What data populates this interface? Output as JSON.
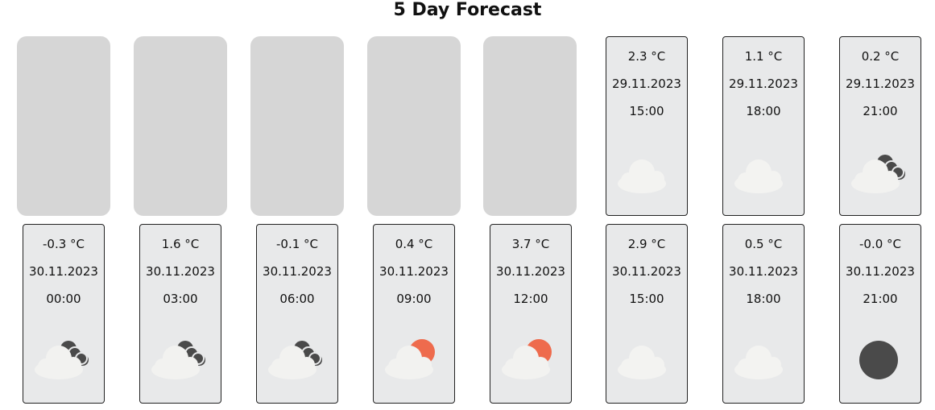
{
  "title": "5 Day Forecast",
  "placeholder_count": 5,
  "row1": [
    {
      "temp": "2.3 °C",
      "date": "29.11.2023",
      "time": "15:00",
      "icon": "cloudy-light-icon"
    },
    {
      "temp": "1.1 °C",
      "date": "29.11.2023",
      "time": "18:00",
      "icon": "cloudy-light-icon"
    },
    {
      "temp": "0.2 °C",
      "date": "29.11.2023",
      "time": "21:00",
      "icon": "cloudy-night-icon"
    }
  ],
  "row2": [
    {
      "temp": "-0.3 °C",
      "date": "30.11.2023",
      "time": "00:00",
      "icon": "cloudy-night-icon"
    },
    {
      "temp": "1.6 °C",
      "date": "30.11.2023",
      "time": "03:00",
      "icon": "cloudy-night-icon"
    },
    {
      "temp": "-0.1 °C",
      "date": "30.11.2023",
      "time": "06:00",
      "icon": "cloudy-night-icon"
    },
    {
      "temp": "0.4 °C",
      "date": "30.11.2023",
      "time": "09:00",
      "icon": "cloudy-sun-icon"
    },
    {
      "temp": "3.7 °C",
      "date": "30.11.2023",
      "time": "12:00",
      "icon": "cloudy-sun-icon"
    },
    {
      "temp": "2.9 °C",
      "date": "30.11.2023",
      "time": "15:00",
      "icon": "cloudy-light-icon"
    },
    {
      "temp": "0.5 °C",
      "date": "30.11.2023",
      "time": "18:00",
      "icon": "cloudy-light-icon"
    },
    {
      "temp": "-0.0 °C",
      "date": "30.11.2023",
      "time": "21:00",
      "icon": "clear-night-icon"
    }
  ],
  "colors": {
    "card_bg": "#e8e9ea",
    "placeholder_bg": "#d6d6d6",
    "cloud": "#f2f2f0",
    "cloud_dark": "#4a4a4a",
    "sun": "#ee6b4d",
    "moon": "#4a4a4a"
  }
}
